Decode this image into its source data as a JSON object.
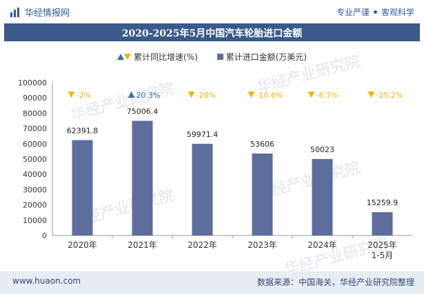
{
  "header": {
    "brand": "华经情报网",
    "tagline_left": "专业严谨",
    "tagline_right": "客观科学"
  },
  "chart_data": {
    "type": "bar",
    "title": "2020-2025年5月中国汽车轮胎进口金额",
    "categories": [
      "2020年",
      "2021年",
      "2022年",
      "2023年",
      "2024年",
      "2025年\n1-5月"
    ],
    "series": [
      {
        "name": "累计进口金额(万美元)",
        "values": [
          62391.8,
          75006.4,
          59971.4,
          53606,
          50023,
          15259.9
        ],
        "color": "#5d6e9c"
      }
    ],
    "growth": {
      "name": "累计同比增速(%)",
      "labels": [
        "-2%",
        "20.3%",
        "-20%",
        "-10.6%",
        "-6.7%",
        "-25.2%"
      ],
      "direction": [
        "down",
        "up",
        "down",
        "down",
        "down",
        "down"
      ],
      "up_color": "#3a6ea5",
      "down_color": "#f0b400"
    },
    "value_labels": [
      "62391.8",
      "75006.4",
      "59971.4",
      "53606",
      "50023",
      "15259.9"
    ],
    "ylim": [
      0,
      100000
    ],
    "yticks": [
      "0",
      "10000",
      "20000",
      "30000",
      "40000",
      "50000",
      "60000",
      "70000",
      "80000",
      "90000",
      "100000"
    ],
    "grid": false,
    "legend_position": "top"
  },
  "legend": {
    "growth_label": "累计同比增速(%)",
    "amount_label": "累计进口金额(万美元)"
  },
  "footer": {
    "site": "www.huaon.com",
    "source": "数据来源：中国海关，华经产业研究院整理"
  },
  "watermark": {
    "text": "华经产业研究院",
    "url": "www.huaon.com"
  }
}
